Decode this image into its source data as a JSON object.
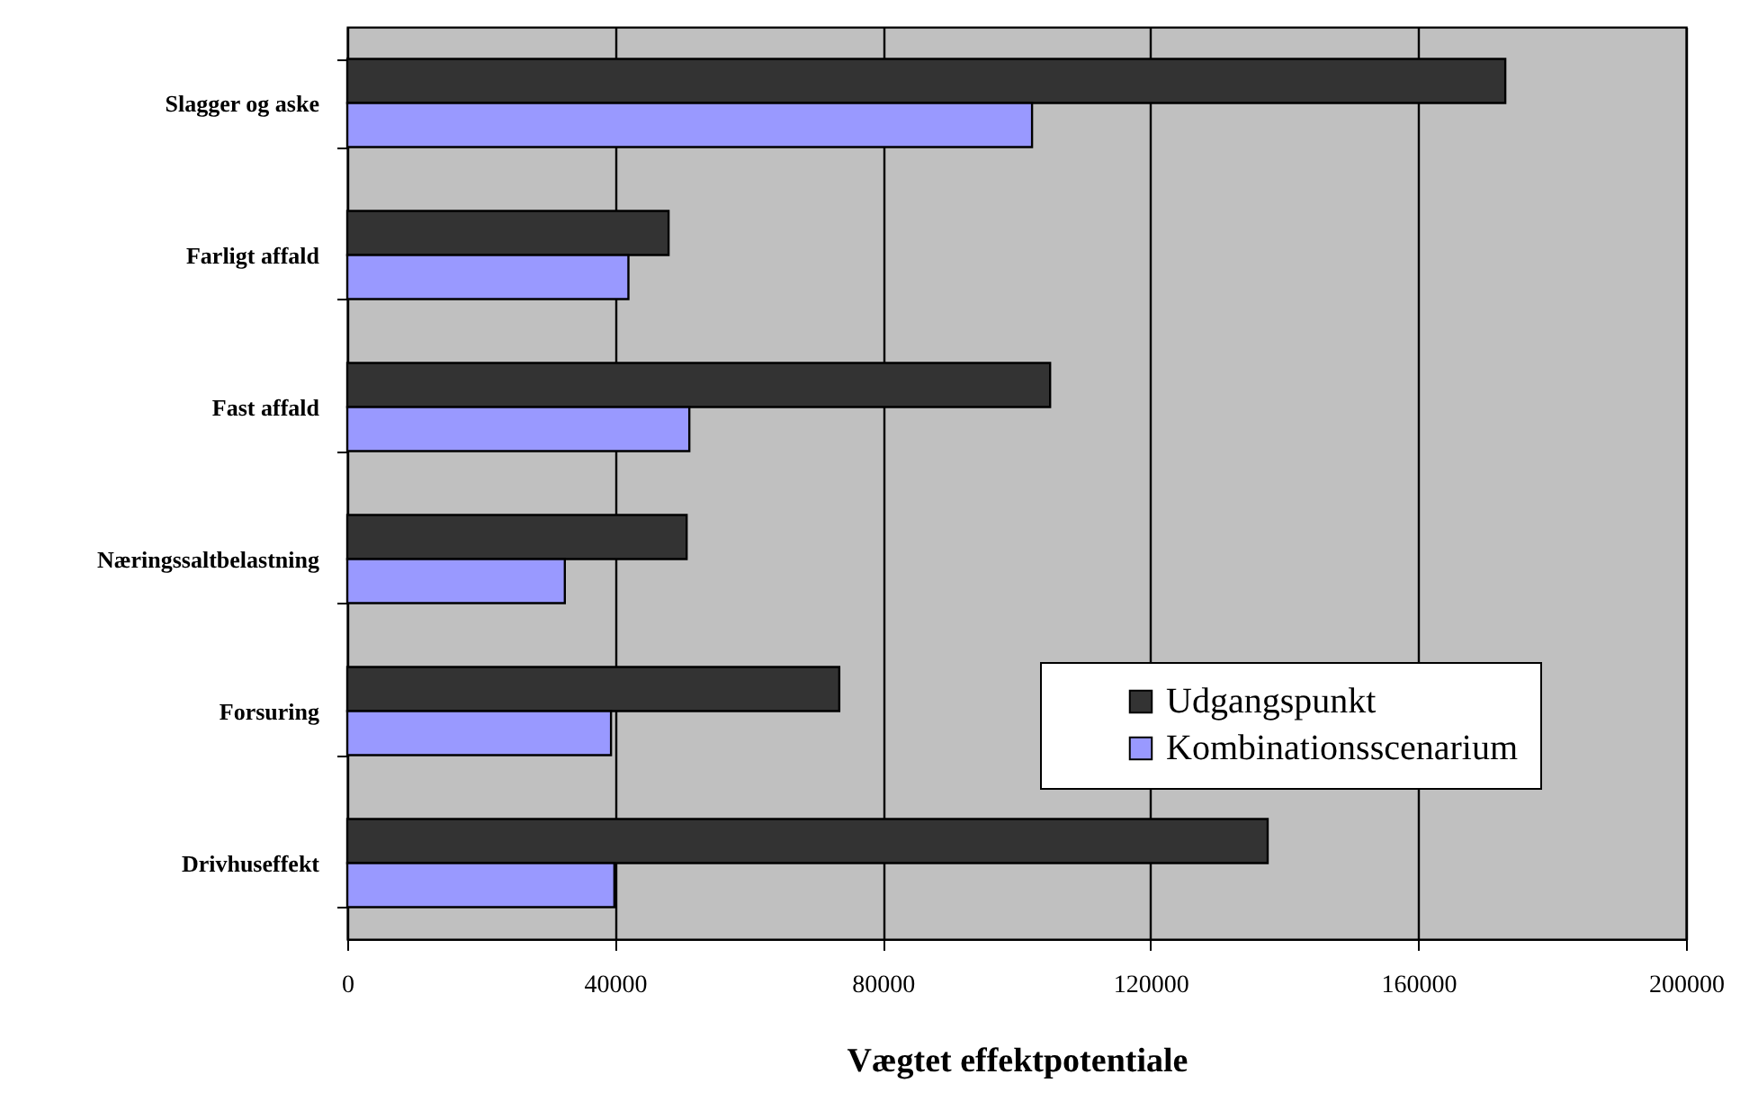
{
  "chart_data": {
    "type": "bar",
    "orientation": "horizontal",
    "xlabel": "Vægtet effektpotentiale",
    "categories": [
      "Slagger og aske",
      "Farligt affald",
      "Fast affald",
      "Næringssaltbelastning",
      "Forsuring",
      "Drivhuseffekt"
    ],
    "series": [
      {
        "name": "Udgangspunkt",
        "color": "#333333",
        "values": [
          173000,
          48000,
          105000,
          50700,
          73500,
          137500
        ]
      },
      {
        "name": "Kombinationsscenarium",
        "color": "#9999ff",
        "values": [
          102300,
          42000,
          51100,
          32500,
          39400,
          39900
        ]
      }
    ],
    "xlim": [
      0,
      200000
    ],
    "xticks": [
      0,
      40000,
      80000,
      120000,
      160000,
      200000
    ],
    "grid": "x",
    "legend": "bottom right"
  }
}
